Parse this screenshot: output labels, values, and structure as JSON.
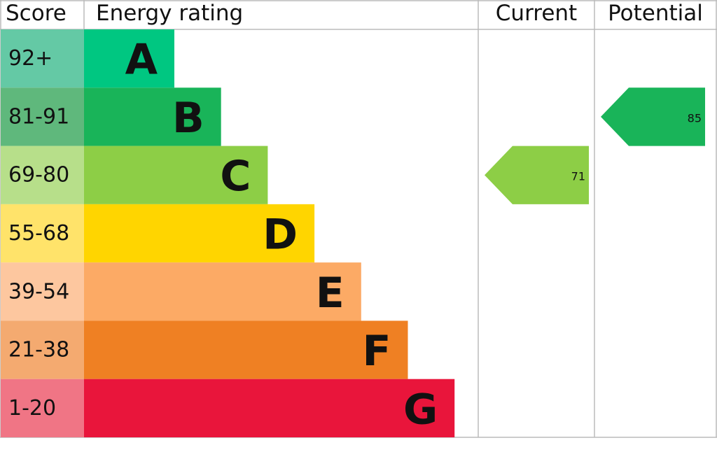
{
  "chart_data": {
    "type": "epc",
    "headers": {
      "score": "Score",
      "rating": "Energy rating",
      "current": "Current",
      "potential": "Potential"
    },
    "bands": [
      {
        "score": "92+",
        "letter": "A",
        "color": "#00c781",
        "score_color": "#64c9a5"
      },
      {
        "score": "81-91",
        "letter": "B",
        "color": "#19b459",
        "score_color": "#5fb87c"
      },
      {
        "score": "69-80",
        "letter": "C",
        "color": "#8dce46",
        "score_color": "#b7df8a"
      },
      {
        "score": "55-68",
        "letter": "D",
        "color": "#ffd500",
        "score_color": "#ffe36a"
      },
      {
        "score": "39-54",
        "letter": "E",
        "color": "#fcaa65",
        "score_color": "#fdc79f"
      },
      {
        "score": "21-38",
        "letter": "F",
        "color": "#ef8023",
        "score_color": "#f4aa70"
      },
      {
        "score": "1-20",
        "letter": "G",
        "color": "#e9153b",
        "score_color": "#f07585"
      }
    ],
    "current": 71,
    "potential": 85
  }
}
